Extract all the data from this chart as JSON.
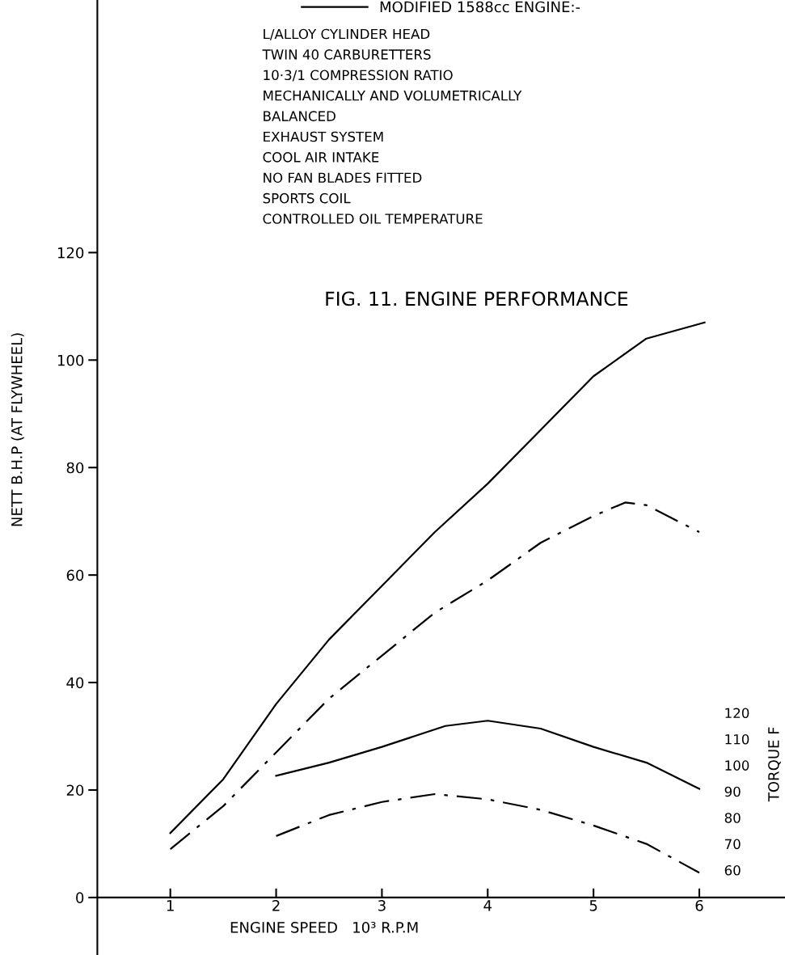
{
  "chart_data": {
    "type": "line",
    "title": "FIG. 11. ENGINE PERFORMANCE",
    "xlabel": "ENGINE SPEED   10³ R.P.M",
    "ylabel": "NETT B.H.P (AT FLYWHEEL)",
    "y2label": "TORQUE F",
    "xlim": [
      0.31,
      6.81
    ],
    "xticks": [
      1,
      2,
      3,
      4,
      5,
      6
    ],
    "ylim": [
      -10.7,
      167
    ],
    "yticks": [
      0,
      20,
      40,
      60,
      80,
      100,
      120
    ],
    "y2lim": [
      27.6,
      392
    ],
    "y2ticks": [
      60,
      70,
      80,
      90,
      100,
      110,
      120
    ],
    "grid": false,
    "legend": "top",
    "marker": "none",
    "annotations": [
      "L/ALLOY CYLINDER HEAD",
      "TWIN 40 CARBURETTERS",
      "10·3/1 COMPRESSION RATIO",
      "MECHANICALLY AND VOLUMETRICALLY",
      "BALANCED",
      "EXHAUST SYSTEM",
      "COOL AIR INTAKE",
      "NO FAN BLADES FITTED",
      "SPORTS COIL",
      "CONTROLLED OIL TEMPERATURE"
    ],
    "series": [
      {
        "name": "MODIFIED 1588cc ENGINE:-",
        "color": "#000000",
        "line_style": "solid",
        "x": [
          1,
          1.5,
          2,
          2.5,
          3,
          3.5,
          4,
          4.5,
          5,
          5.5,
          6.05
        ],
        "values": [
          12,
          22,
          36,
          48,
          58,
          68,
          77,
          87,
          97,
          104,
          107
        ]
      },
      {
        "color": "#000000",
        "line_style": "dashdot",
        "x": [
          1,
          1.5,
          2,
          2.5,
          3,
          3.5,
          4,
          4.5,
          5,
          5.3,
          5.5,
          6
        ],
        "values": [
          9,
          17,
          27,
          37,
          45,
          53,
          59,
          66,
          71,
          73.5,
          73,
          68
        ]
      },
      {
        "color": "#000000",
        "line_style": "solid",
        "axis": "y2",
        "x": [
          2,
          2.5,
          3,
          3.6,
          4,
          4.5,
          5,
          5.5,
          6
        ],
        "values": [
          96,
          101,
          107,
          115,
          117,
          114,
          107,
          101,
          91
        ]
      },
      {
        "color": "#000000",
        "line_style": "dashdot",
        "axis": "y2",
        "x": [
          2,
          2.5,
          3,
          3.5,
          4,
          4.5,
          5,
          5.5,
          6
        ],
        "values": [
          73,
          81,
          86,
          89,
          87,
          83,
          77,
          70,
          59
        ]
      }
    ]
  }
}
